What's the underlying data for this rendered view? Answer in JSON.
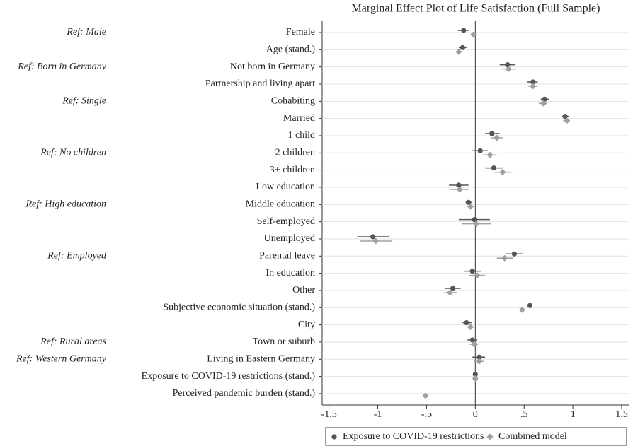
{
  "chart_data": {
    "type": "coefplot",
    "title": "Marginal Effect Plot of Life Satisfaction (Full Sample)",
    "categories": [
      "Female",
      "Age (stand.)",
      "Not born in Germany",
      "Partnership and living apart",
      "Cohabiting",
      "Married",
      "1 child",
      "2 children",
      "3+ children",
      "Low education",
      "Middle education",
      "Self-employed",
      "Unemployed",
      "Parental leave",
      "In education",
      "Other",
      "Subjective economic situation (stand.)",
      "City",
      "Town or suburb",
      "Living in Eastern Germany",
      "Exposure to COVID-19 restrictions (stand.)",
      "Perceived pandemic burden (stand.)"
    ],
    "group_labels": [
      "Ref: Male",
      null,
      "Ref: Born in Germany",
      null,
      "Ref: Single",
      null,
      null,
      "Ref: No children",
      null,
      null,
      "Ref: High education",
      null,
      null,
      "Ref: Employed",
      null,
      null,
      null,
      null,
      "Ref: Rural areas",
      "Ref: Western Germany",
      null,
      null
    ],
    "series": [
      {
        "name": "Exposure to COVID-19 restrictions",
        "color": "#555555",
        "marker": "circle",
        "values": [
          -0.12,
          -0.13,
          0.33,
          0.59,
          0.71,
          0.92,
          0.17,
          0.05,
          0.19,
          -0.17,
          -0.07,
          -0.01,
          -1.05,
          0.4,
          -0.03,
          -0.23,
          0.56,
          -0.09,
          -0.03,
          0.04,
          0.0,
          null
        ],
        "lower": [
          -0.18,
          -0.17,
          0.25,
          0.53,
          0.67,
          0.89,
          0.1,
          -0.03,
          0.1,
          -0.27,
          -0.1,
          -0.17,
          -1.21,
          0.31,
          -0.11,
          -0.31,
          0.54,
          -0.13,
          -0.08,
          -0.03,
          -0.01,
          null
        ],
        "upper": [
          -0.07,
          -0.09,
          0.41,
          0.64,
          0.76,
          0.96,
          0.25,
          0.13,
          0.28,
          -0.07,
          -0.03,
          0.15,
          -0.88,
          0.49,
          0.06,
          -0.15,
          0.58,
          -0.04,
          0.02,
          0.1,
          0.01,
          null
        ]
      },
      {
        "name": "Combined model",
        "color": "#a0a0a0",
        "marker": "diamond",
        "values": [
          -0.02,
          -0.17,
          0.34,
          0.59,
          0.7,
          0.94,
          0.22,
          0.15,
          0.28,
          -0.16,
          -0.05,
          0.01,
          -1.02,
          0.3,
          0.02,
          -0.26,
          0.48,
          -0.05,
          -0.01,
          0.04,
          0.0,
          -0.51
        ],
        "lower": [
          -0.05,
          -0.2,
          0.27,
          0.54,
          0.65,
          0.9,
          0.16,
          0.08,
          0.2,
          -0.26,
          -0.08,
          -0.14,
          -1.18,
          0.22,
          -0.06,
          -0.32,
          0.46,
          -0.09,
          -0.06,
          -0.01,
          -0.01,
          -0.53
        ],
        "upper": [
          0.01,
          -0.13,
          0.42,
          0.64,
          0.74,
          0.97,
          0.28,
          0.22,
          0.36,
          -0.06,
          -0.01,
          0.16,
          -0.85,
          0.39,
          0.1,
          -0.19,
          0.5,
          -0.01,
          0.03,
          0.09,
          0.01,
          -0.49
        ]
      }
    ],
    "xlim": [
      -1.57,
      1.58
    ],
    "xticks": [
      -1.5,
      -1,
      {
        "value": -0.5,
        "label": "-.5"
      },
      0,
      {
        "value": 0.5,
        "label": ".5"
      },
      1,
      1.5
    ],
    "grid": true,
    "legend": "bottom"
  }
}
